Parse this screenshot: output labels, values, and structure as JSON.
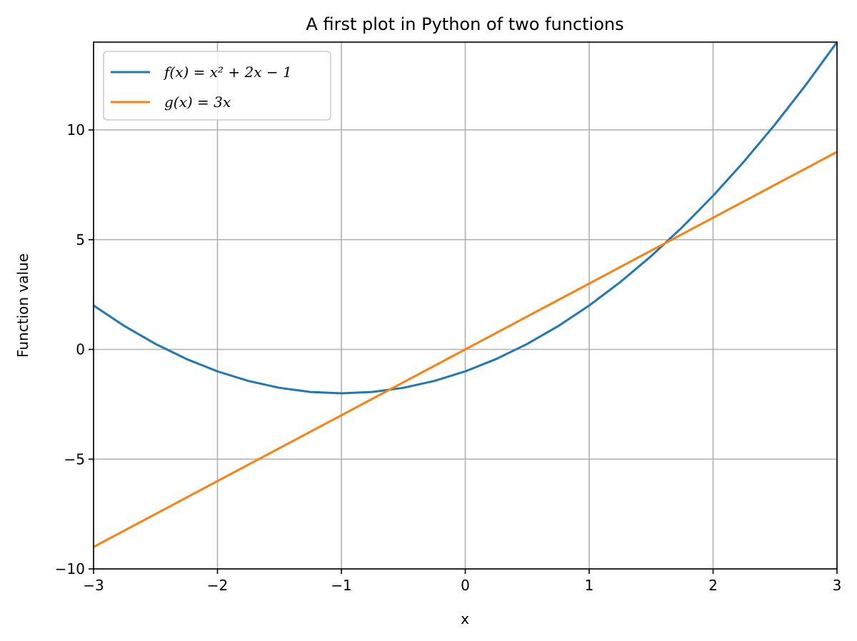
{
  "chart_data": {
    "type": "line",
    "title": "A first plot in Python of two functions",
    "xlabel": "x",
    "ylabel": "Function value",
    "xlim": [
      -3,
      3
    ],
    "ylim": [
      -10,
      14
    ],
    "xticks": [
      -3,
      -2,
      -1,
      0,
      1,
      2,
      3
    ],
    "xtick_labels": [
      "−3",
      "−2",
      "−1",
      "0",
      "1",
      "2",
      "3"
    ],
    "yticks": [
      -10,
      -5,
      0,
      5,
      10
    ],
    "ytick_labels": [
      "−10",
      "−5",
      "0",
      "5",
      "10"
    ],
    "grid": true,
    "legend_position": "upper-left",
    "series": [
      {
        "name": "f(x) = x² + 2x − 1",
        "color": "#1f77b4",
        "x": [
          -3.0,
          -2.75,
          -2.5,
          -2.25,
          -2.0,
          -1.75,
          -1.5,
          -1.25,
          -1.0,
          -0.75,
          -0.5,
          -0.25,
          0.0,
          0.25,
          0.5,
          0.75,
          1.0,
          1.25,
          1.5,
          1.75,
          2.0,
          2.25,
          2.5,
          2.75,
          3.0
        ],
        "y": [
          2.0,
          1.0625,
          0.25,
          -0.4375,
          -1.0,
          -1.4375,
          -1.75,
          -1.9375,
          -2.0,
          -1.9375,
          -1.75,
          -1.4375,
          -1.0,
          -0.4375,
          0.25,
          1.0625,
          2.0,
          3.0625,
          4.25,
          5.5625,
          7.0,
          8.5625,
          10.25,
          12.0625,
          14.0
        ]
      },
      {
        "name": "g(x) = 3x",
        "color": "#ff7f0e",
        "x": [
          -3.0,
          3.0
        ],
        "y": [
          -9.0,
          9.0
        ]
      }
    ]
  }
}
